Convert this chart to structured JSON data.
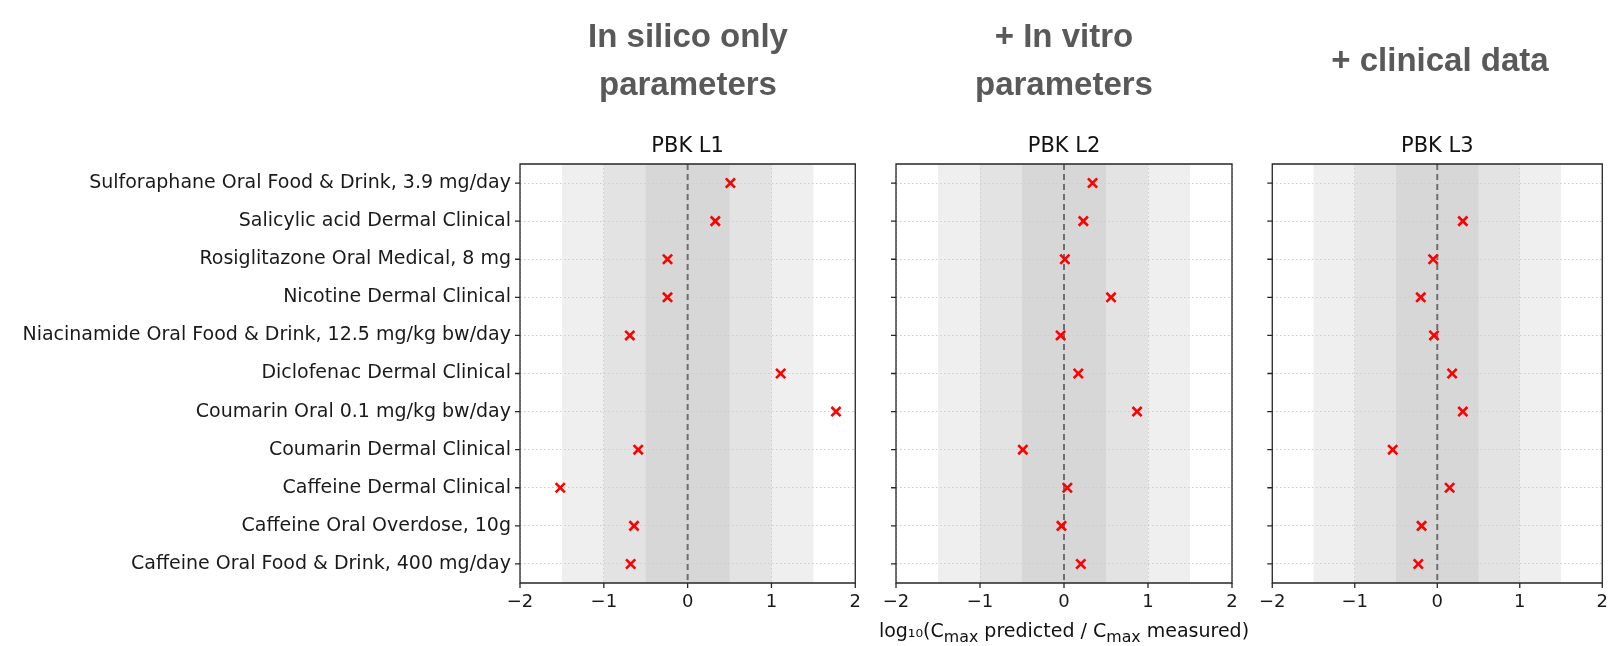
{
  "chart_data": [
    {
      "type": "scatter",
      "orientation": "horizontal",
      "title": "In silico only\nparameters",
      "subtitle": "PBK L1",
      "categories": [
        "Sulforaphane Oral Food & Drink, 3.9 mg/day",
        "Salicylic acid Dermal Clinical",
        "Rosiglitazone Oral Medical, 8 mg",
        "Nicotine Dermal Clinical",
        "Niacinamide Oral Food & Drink, 12.5 mg/kg bw/day",
        "Diclofenac Dermal Clinical",
        "Coumarin Oral 0.1 mg/kg bw/day",
        "Coumarin Dermal Clinical",
        "Caffeine Dermal Clinical",
        "Caffeine Oral Overdose, 10g",
        "Caffeine Oral Food & Drink, 400 mg/day"
      ],
      "series": [
        {
          "color": "#ff0000",
          "values": [
            0.51,
            0.33,
            -0.24,
            -0.24,
            -0.69,
            1.11,
            1.77,
            -0.59,
            -1.52,
            -0.64,
            -0.68
          ]
        }
      ],
      "marker": "cross",
      "xlim": [
        -2,
        2
      ],
      "xticks": [
        -2,
        -1,
        0,
        1,
        2
      ],
      "grid": true,
      "bands": [
        {
          "axis": "x",
          "from": -1.5,
          "to": 1.5,
          "color": "#efefef"
        },
        {
          "axis": "x",
          "from": -1,
          "to": 1,
          "color": "#e3e3e3"
        },
        {
          "axis": "x",
          "from": -0.5,
          "to": 0.5,
          "color": "#d7d7d7"
        }
      ],
      "ref_lines": [
        {
          "axis": "x",
          "value": 0,
          "color": "#6e6e6e",
          "line_style": "dashed"
        }
      ]
    },
    {
      "type": "scatter",
      "orientation": "horizontal",
      "title": "+ In vitro\nparameters",
      "subtitle": "PBK L2",
      "xlabel": "log₁₀(C$_{max}$ predicted / C$_{max}$ measured)",
      "categories": [
        null,
        null,
        null,
        null,
        null,
        null,
        null,
        null,
        null,
        null,
        null
      ],
      "series": [
        {
          "color": "#ff0000",
          "values": [
            0.34,
            0.23,
            0.01,
            0.56,
            -0.04,
            0.17,
            0.87,
            -0.49,
            0.04,
            -0.03,
            0.2
          ]
        }
      ],
      "marker": "cross",
      "xlim": [
        -2,
        2
      ],
      "xticks": [
        -2,
        -1,
        0,
        1,
        2
      ],
      "grid": true,
      "bands": [
        {
          "axis": "x",
          "from": -1.5,
          "to": 1.5,
          "color": "#efefef"
        },
        {
          "axis": "x",
          "from": -1,
          "to": 1,
          "color": "#e3e3e3"
        },
        {
          "axis": "x",
          "from": -0.5,
          "to": 0.5,
          "color": "#d7d7d7"
        }
      ],
      "ref_lines": [
        {
          "axis": "x",
          "value": 0,
          "color": "#6e6e6e",
          "line_style": "dashed"
        }
      ]
    },
    {
      "type": "scatter",
      "orientation": "horizontal",
      "title": "+ clinical data",
      "subtitle": "PBK L3",
      "categories": [
        null,
        null,
        null,
        null,
        null,
        null,
        null,
        null,
        null,
        null,
        null
      ],
      "series": [
        {
          "color": "#ff0000",
          "values": [
            null,
            0.31,
            -0.05,
            -0.2,
            -0.04,
            0.18,
            0.31,
            -0.54,
            0.15,
            -0.19,
            -0.23
          ]
        }
      ],
      "marker": "cross",
      "xlim": [
        -2,
        2
      ],
      "xticks": [
        -2,
        -1,
        0,
        1,
        2
      ],
      "grid": true,
      "bands": [
        {
          "axis": "x",
          "from": -1.5,
          "to": 1.5,
          "color": "#efefef"
        },
        {
          "axis": "x",
          "from": -1,
          "to": 1,
          "color": "#e3e3e3"
        },
        {
          "axis": "x",
          "from": -0.5,
          "to": 0.5,
          "color": "#d7d7d7"
        }
      ],
      "ref_lines": [
        {
          "axis": "x",
          "value": 0,
          "color": "#6e6e6e",
          "line_style": "dashed"
        }
      ]
    }
  ]
}
